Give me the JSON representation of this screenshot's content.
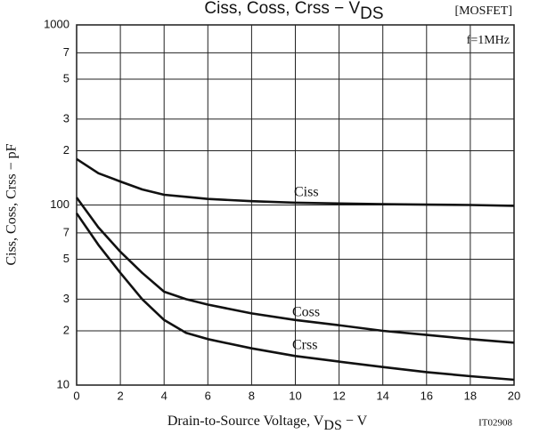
{
  "chart_data": {
    "type": "line",
    "title": [
      "Ciss, Coss, Crss − V",
      "DS"
    ],
    "annotations": [
      "[MOSFET]",
      "f=1MHz",
      "IT02908"
    ],
    "xlabel": [
      "Drain-to-Source Voltage, V",
      "DS",
      " − V"
    ],
    "ylabel": "Ciss, Coss, Crss − pF",
    "log_y": true,
    "grid": true,
    "x": [
      0,
      1,
      2,
      3,
      4,
      5,
      6,
      8,
      10,
      12,
      14,
      16,
      18,
      20
    ],
    "series": [
      {
        "name": "Ciss",
        "color": "#111111",
        "values": [
          180,
          150,
          135,
          122,
          114,
          111,
          108,
          105,
          103,
          102,
          101,
          100.5,
          100,
          99
        ]
      },
      {
        "name": "Coss",
        "color": "#111111",
        "values": [
          110,
          75,
          55,
          42,
          33,
          30,
          28,
          25,
          23,
          21.5,
          20,
          19,
          18,
          17.2
        ]
      },
      {
        "name": "Crss",
        "color": "#111111",
        "values": [
          90,
          60,
          42,
          30,
          23,
          19.5,
          18,
          16,
          14.5,
          13.5,
          12.6,
          11.8,
          11.2,
          10.7
        ]
      }
    ],
    "xlim": [
      0,
      20
    ],
    "xticks": [
      0,
      2,
      4,
      6,
      8,
      10,
      12,
      14,
      16,
      18,
      20
    ],
    "ylim": [
      10,
      1000
    ],
    "yticks": [
      10,
      {
        "value": 20,
        "label": "2"
      },
      {
        "value": 30,
        "label": "3"
      },
      {
        "value": 50,
        "label": "5"
      },
      {
        "value": 70,
        "label": "7"
      },
      100,
      {
        "value": 200,
        "label": "2"
      },
      {
        "value": 300,
        "label": "3"
      },
      {
        "value": 500,
        "label": "5"
      },
      {
        "value": 700,
        "label": "7"
      },
      1000
    ]
  }
}
